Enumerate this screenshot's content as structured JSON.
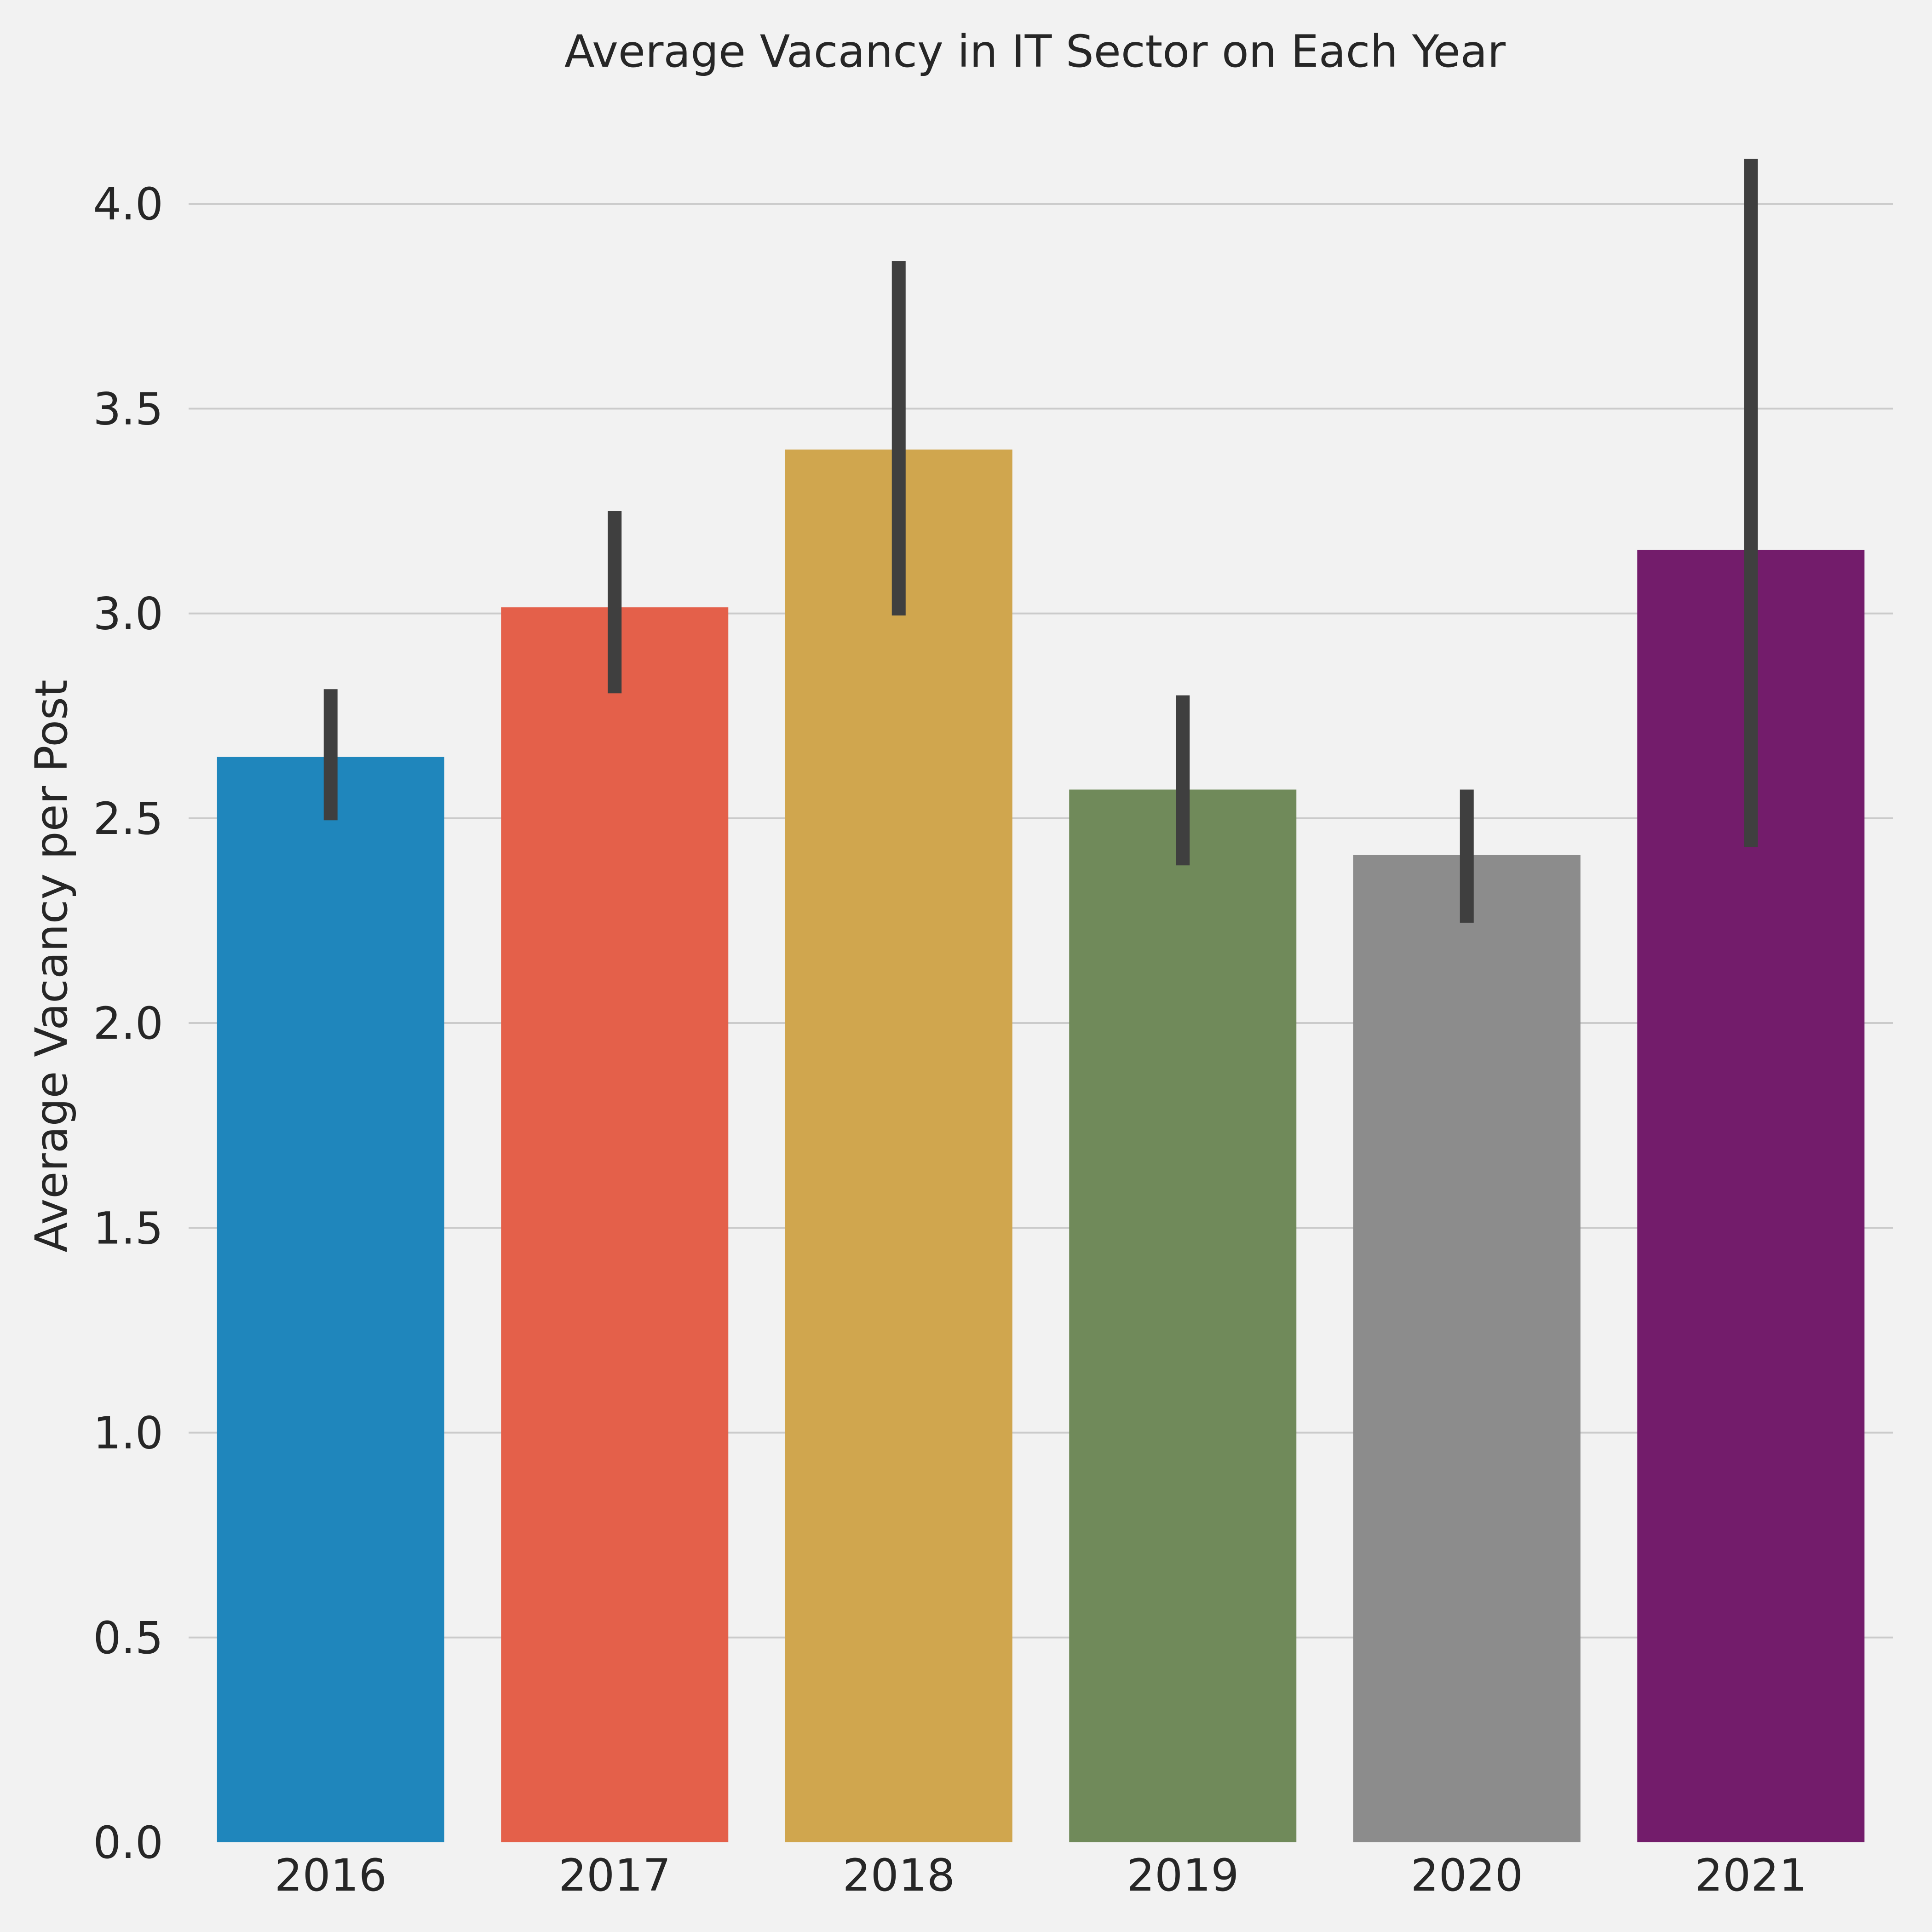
{
  "chart_data": {
    "type": "bar",
    "title": "Average Vacancy in IT Sector on Each Year",
    "xlabel": "",
    "ylabel": "Average Vacancy per Post",
    "categories": [
      "2016",
      "2017",
      "2018",
      "2019",
      "2020",
      "2021"
    ],
    "values": [
      2.65,
      3.015,
      3.4,
      2.57,
      2.41,
      3.155
    ],
    "error_low": [
      2.495,
      2.805,
      2.995,
      2.385,
      2.245,
      2.43
    ],
    "error_high": [
      2.815,
      3.25,
      3.86,
      2.8,
      2.57,
      4.11
    ],
    "colors": [
      "#1f86bc",
      "#e4604a",
      "#d0a64e",
      "#708a5a",
      "#8c8c8c",
      "#731c6b"
    ],
    "errorbar_color": "#3f3f3f",
    "background": "#f2f2f2",
    "grid": "horizontal",
    "ylim": [
      0,
      4.2
    ],
    "yticks": [
      "0.0",
      "0.5",
      "1.0",
      "1.5",
      "2.0",
      "2.5",
      "3.0",
      "3.5",
      "4.0"
    ],
    "ytick_values": [
      0,
      0.5,
      1.0,
      1.5,
      2.0,
      2.5,
      3.0,
      3.5,
      4.0
    ]
  }
}
